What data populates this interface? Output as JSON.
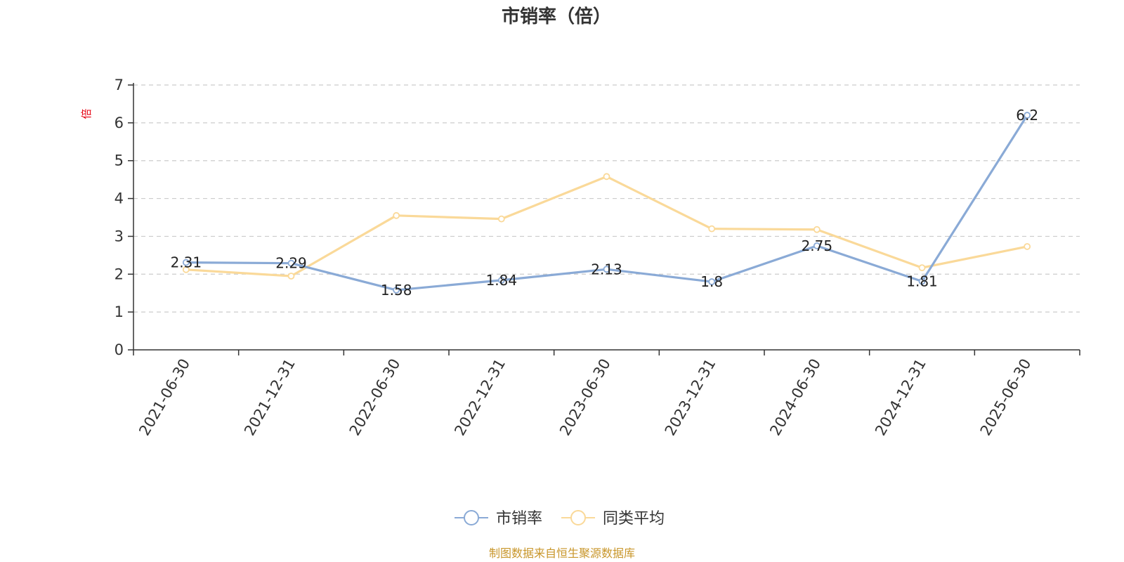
{
  "source_note": "制图数据来自恒生聚源数据库",
  "chart_data": {
    "type": "line",
    "title": "市销率（倍）",
    "ylabel": "倍",
    "xlabel": "",
    "ylim": [
      0,
      7
    ],
    "yticks": [
      "0",
      "1",
      "2",
      "3",
      "4",
      "5",
      "6",
      "7"
    ],
    "grid": true,
    "legend_position": "bottom-center",
    "categories": [
      "2021-06-30",
      "2021-12-31",
      "2022-06-30",
      "2022-12-31",
      "2023-06-30",
      "2023-12-31",
      "2024-06-30",
      "2024-12-31",
      "2025-06-30"
    ],
    "series": [
      {
        "name": "市销率",
        "color": "#8aaad6",
        "values": [
          2.31,
          2.29,
          1.58,
          1.84,
          2.13,
          1.8,
          2.75,
          1.81,
          6.2
        ],
        "labels": [
          "2.31",
          "2.29",
          "1.58",
          "1.84",
          "2.13",
          "1.8",
          "2.75",
          "1.81",
          "6.2"
        ]
      },
      {
        "name": "同类平均",
        "color": "#fad999",
        "values": [
          2.12,
          1.95,
          3.55,
          3.46,
          4.58,
          3.2,
          3.18,
          2.17,
          2.73
        ]
      }
    ]
  }
}
